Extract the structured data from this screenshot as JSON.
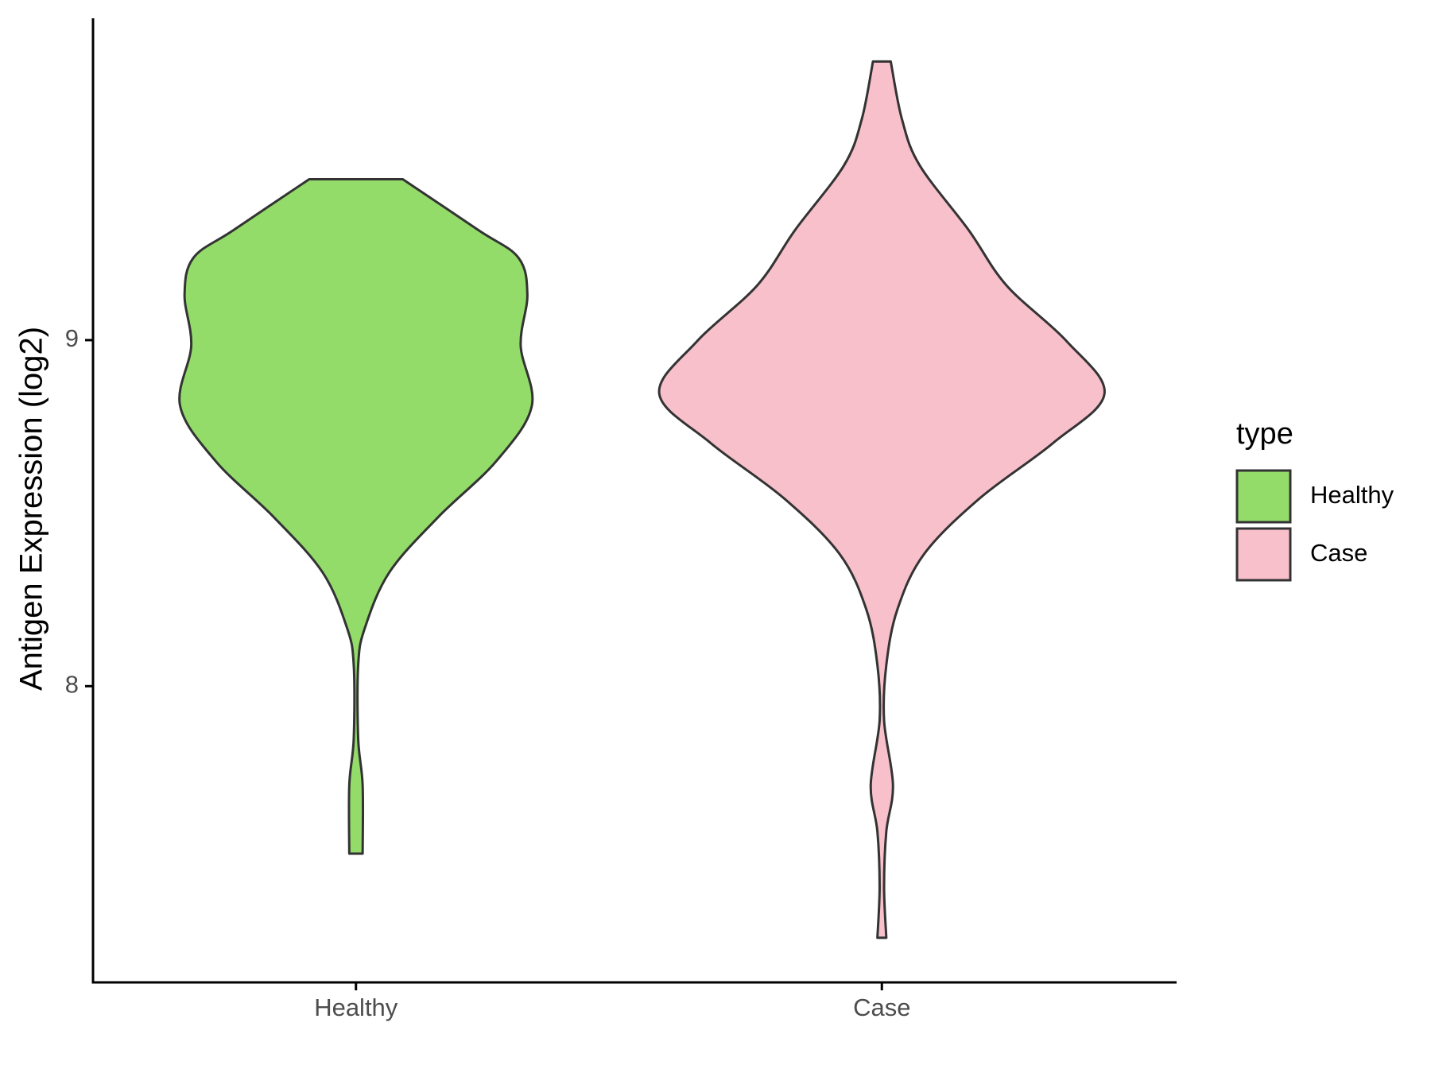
{
  "chart_data": {
    "type": "violin",
    "ylabel": "Antigen Expression (log2)",
    "categories": [
      "Healthy",
      "Case"
    ],
    "series": [
      {
        "name": "Healthy",
        "color": "#93dc6a",
        "y": [
          9.465,
          9.318,
          9.238,
          9.131,
          8.984,
          8.81,
          8.65,
          8.489,
          8.329,
          8.168,
          8.061,
          7.848,
          7.714,
          7.516
        ],
        "width": [
          0.21,
          0.55,
          0.73,
          0.77,
          0.74,
          0.79,
          0.63,
          0.37,
          0.15,
          0.04,
          0.01,
          0.01,
          0.03,
          0.03
        ]
      },
      {
        "name": "Case",
        "color": "#f7c0cb",
        "y": [
          9.805,
          9.639,
          9.505,
          9.318,
          9.158,
          8.997,
          8.845,
          8.703,
          8.543,
          8.382,
          8.222,
          8.061,
          7.901,
          7.714,
          7.58,
          7.42,
          7.273
        ],
        "width": [
          0.04,
          0.09,
          0.17,
          0.39,
          0.56,
          0.83,
          1.0,
          0.77,
          0.44,
          0.19,
          0.07,
          0.02,
          0.01,
          0.05,
          0.02,
          0.01,
          0.02
        ]
      }
    ],
    "ylim": [
      7.144,
      9.93
    ],
    "yticks": [
      8,
      9
    ],
    "legend_title": "type",
    "legend": "right"
  }
}
